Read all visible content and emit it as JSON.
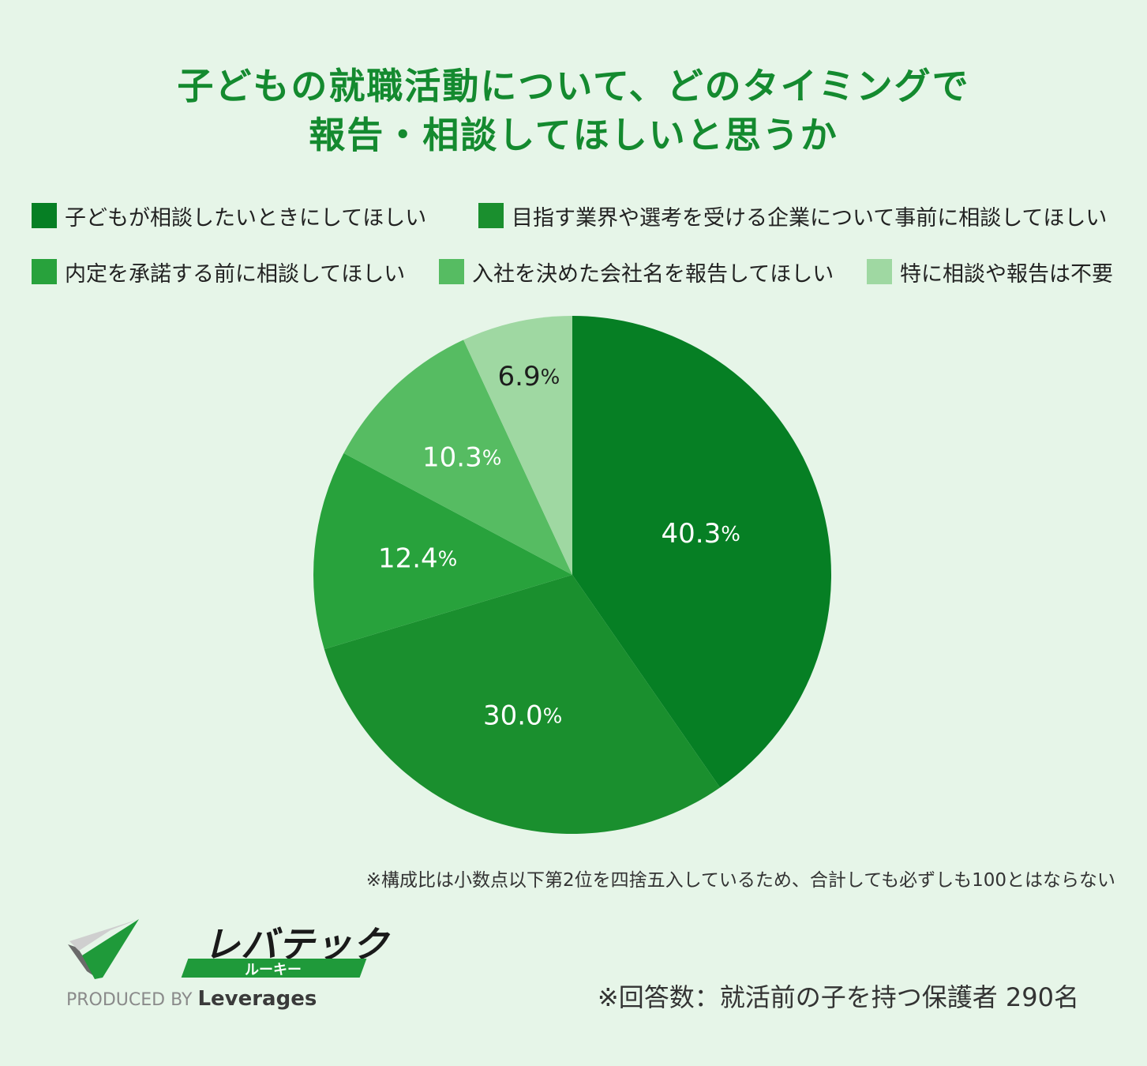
{
  "title": {
    "line1": "子どもの就職活動について、どのタイミングで",
    "line2": "報告・相談してほしいと思うか"
  },
  "legend": [
    {
      "label": "子どもが相談したいときにしてほしい",
      "color": "#067f24"
    },
    {
      "label": "目指す業界や選考を受ける企業について事前に相談してほしい",
      "color": "#1a8f2e"
    },
    {
      "label": "内定を承諾する前に相談してほしい",
      "color": "#28a23c"
    },
    {
      "label": "入社を決めた会社名を報告してほしい",
      "color": "#56bc62"
    },
    {
      "label": "特に相談や報告は不要",
      "color": "#9fd8a2"
    }
  ],
  "chart_data": {
    "type": "pie",
    "title": "子どもの就職活動について、どのタイミングで報告・相談してほしいと思うか",
    "unit": "%",
    "slices": [
      {
        "label": "子どもが相談したいときにしてほしい",
        "value": 40.3,
        "display": "40.3",
        "color": "#067f24"
      },
      {
        "label": "目指す業界や選考を受ける企業について事前に相談してほしい",
        "value": 30.0,
        "display": "30.0",
        "color": "#1a8f2e"
      },
      {
        "label": "内定を承諾する前に相談してほしい",
        "value": 12.4,
        "display": "12.4",
        "color": "#28a23c"
      },
      {
        "label": "入社を決めた会社名を報告してほしい",
        "value": 10.3,
        "display": "10.3",
        "color": "#56bc62"
      },
      {
        "label": "特に相談や報告は不要",
        "value": 6.9,
        "display": "6.9",
        "color": "#9fd8a2"
      }
    ],
    "legend_position": "top"
  },
  "note": "※構成比は小数点以下第2位を四捨五入しているため、合計しても必ずしも100とはならない",
  "respondents": "※回答数：就活前の子を持つ保護者 290名",
  "logo": {
    "main": "レバテック",
    "sub": "ルーキー",
    "produced_by": "PRODUCED BY",
    "company": "Leverages",
    "colors": {
      "green": "#1f9a3a",
      "gray": "#8a8a8a",
      "dark": "#1a1a1a"
    }
  }
}
